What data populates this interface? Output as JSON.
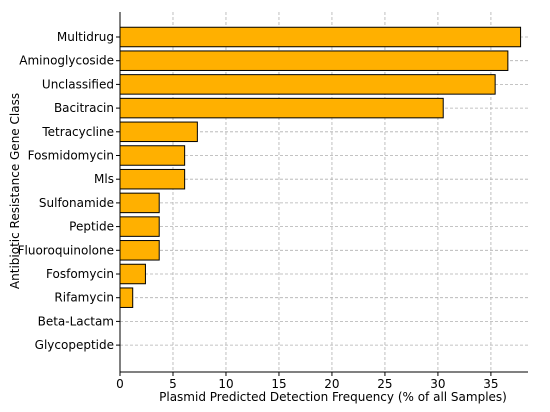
{
  "chart_data": {
    "type": "bar",
    "orientation": "horizontal",
    "title": "",
    "xlabel": "Plasmid Predicted Detection Frequency (% of all Samples)",
    "ylabel": "Antibiotic Resistance Gene Class",
    "xlim": [
      0,
      38.5
    ],
    "xticks": [
      0,
      5,
      10,
      15,
      20,
      25,
      30,
      35
    ],
    "grid": true,
    "bar_color": "#FFB000",
    "categories": [
      "Multidrug",
      "Aminoglycoside",
      "Unclassified",
      "Bacitracin",
      "Tetracycline",
      "Fosmidomycin",
      "Mls",
      "Sulfonamide",
      "Peptide",
      "Fluoroquinolone",
      "Fosfomycin",
      "Rifamycin",
      "Beta-Lactam",
      "Glycopeptide"
    ],
    "values": [
      37.8,
      36.6,
      35.4,
      30.5,
      7.3,
      6.1,
      6.1,
      3.7,
      3.7,
      3.7,
      2.4,
      1.2,
      0,
      0
    ]
  }
}
